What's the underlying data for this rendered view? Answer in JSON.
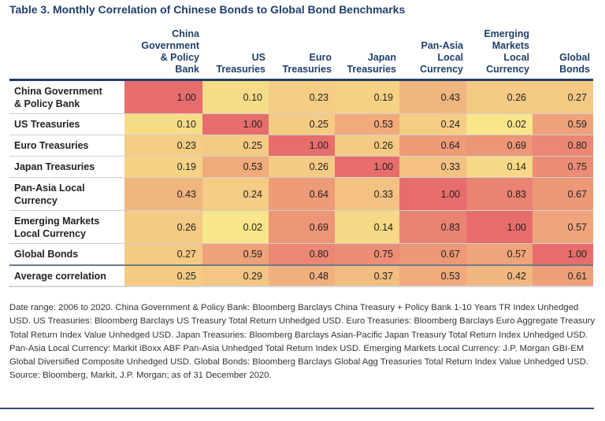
{
  "chart_data": {
    "type": "heatmap",
    "title": "Table 3. Monthly Correlation of Chinese Bonds to Global Bond Benchmarks",
    "columns": [
      "China Government & Policy Bank",
      "US Treasuries",
      "Euro Treasuries",
      "Japan Treasuries",
      "Pan-Asia Local Currency",
      "Emerging Markets Local Currency",
      "Global Bonds"
    ],
    "column_header_lines": [
      [
        "China",
        "Government",
        "& Policy",
        "Bank"
      ],
      [
        "US",
        "Treasuries"
      ],
      [
        "Euro",
        "Treasuries"
      ],
      [
        "Japan",
        "Treasuries"
      ],
      [
        "Pan-Asia",
        "Local",
        "Currency"
      ],
      [
        "Emerging",
        "Markets",
        "Local",
        "Currency"
      ],
      [
        "Global",
        "Bonds"
      ]
    ],
    "rows": [
      {
        "label": "China Government & Policy Bank",
        "label_lines": [
          "China Government",
          "& Policy Bank"
        ],
        "values": [
          1.0,
          0.1,
          0.23,
          0.19,
          0.43,
          0.26,
          0.27
        ]
      },
      {
        "label": "US Treasuries",
        "label_lines": [
          "US Treasuries"
        ],
        "values": [
          0.1,
          1.0,
          0.25,
          0.53,
          0.24,
          0.02,
          0.59
        ]
      },
      {
        "label": "Euro Treasuries",
        "label_lines": [
          "Euro Treasuries"
        ],
        "values": [
          0.23,
          0.25,
          1.0,
          0.26,
          0.64,
          0.69,
          0.8
        ]
      },
      {
        "label": "Japan Treasuries",
        "label_lines": [
          "Japan Treasuries"
        ],
        "values": [
          0.19,
          0.53,
          0.26,
          1.0,
          0.33,
          0.14,
          0.75
        ]
      },
      {
        "label": "Pan-Asia Local Currency",
        "label_lines": [
          "Pan-Asia Local",
          "Currency"
        ],
        "values": [
          0.43,
          0.24,
          0.64,
          0.33,
          1.0,
          0.83,
          0.67
        ]
      },
      {
        "label": "Emerging Markets Local Currency",
        "label_lines": [
          "Emerging Markets",
          "Local Currency"
        ],
        "values": [
          0.26,
          0.02,
          0.69,
          0.14,
          0.83,
          1.0,
          0.57
        ]
      },
      {
        "label": "Global Bonds",
        "label_lines": [
          "Global Bonds"
        ],
        "values": [
          0.27,
          0.59,
          0.8,
          0.75,
          0.67,
          0.57,
          1.0
        ]
      },
      {
        "label": "Average correlation",
        "label_lines": [
          "Average correlation"
        ],
        "values": [
          0.25,
          0.29,
          0.48,
          0.37,
          0.53,
          0.42,
          0.61
        ]
      }
    ],
    "color_scale": {
      "low": "#f9e88a",
      "mid": "#f1b47f",
      "high": "#e76d6c"
    },
    "value_range": [
      0,
      1
    ]
  },
  "notes": {
    "description": "Date range: 2006 to 2020. China Government & Policy Bank: Bloomberg Barclays China Treasury + Policy Bank 1-10 Years TR Index Unhedged USD. US Treasuries: Bloomberg Barclays US Treasury Total Return Unhedged USD. Euro Treasuries: Bloomberg Barclays Euro Aggregate Treasury Total Return Index Value Unhedged USD. Japan Treasuries: Bloomberg Barclays Asian-Pacific Japan Treasury Total Return Index Unhedged USD. Pan-Asia Local Currency: Markit iBoxx ABF Pan-Asia Unhedged Total Return Index USD. Emerging Markets Local Currency: J.P. Morgan GBI-EM Global Diversified Composite Unhedged USD. Global Bonds: Bloomberg Barclays Global Agg Treasuries Total Return Index Value Unhedged USD.",
    "source": "Source: Bloomberg, Markit, J.P. Morgan; as of 31 December 2020."
  },
  "colors": {
    "title": "#1f3f6b",
    "rule": "#2e4d74"
  }
}
